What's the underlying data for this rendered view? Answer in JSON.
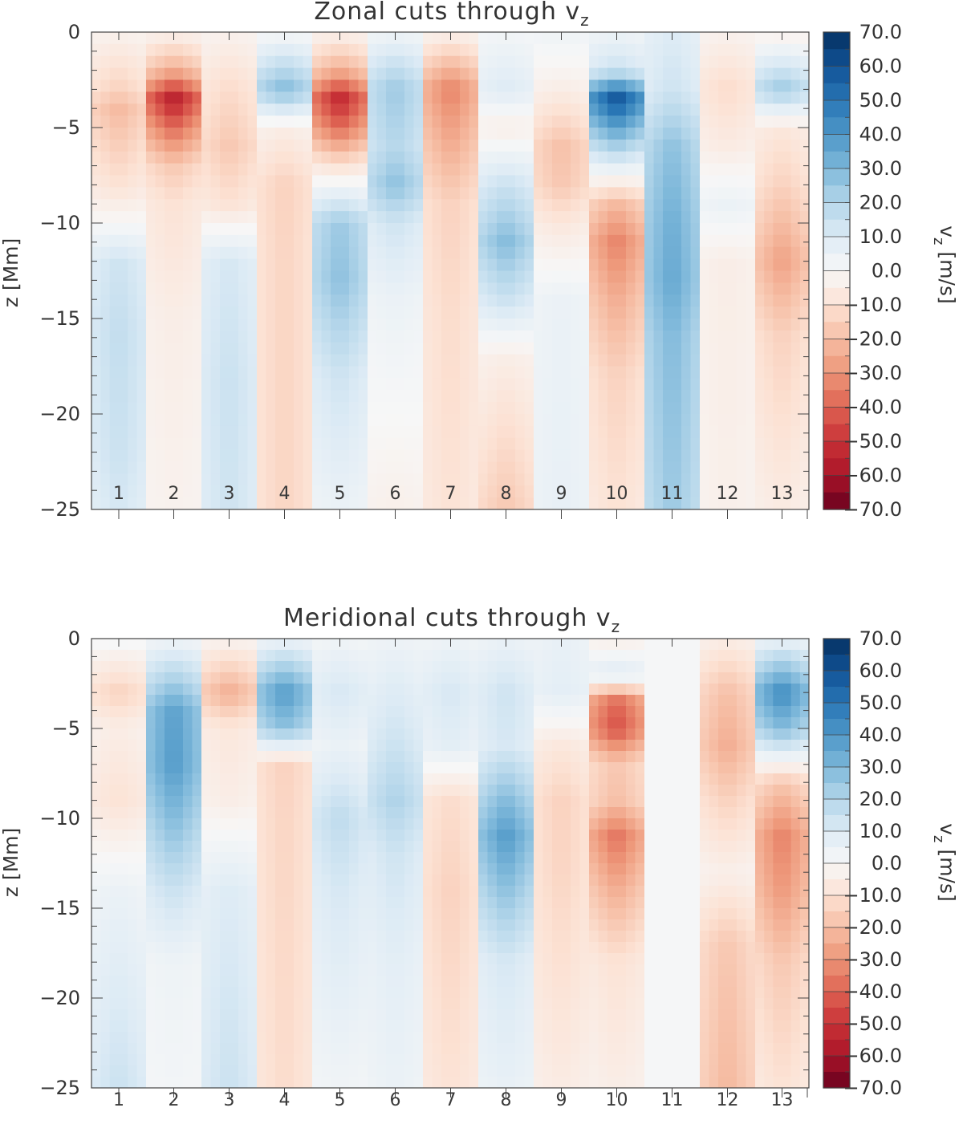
{
  "chart_data": [
    {
      "type": "heatmap",
      "title": "Zonal cuts through v",
      "title_subscript": "z",
      "ylabel": "z [Mm]",
      "ylim": [
        -25,
        0
      ],
      "yticks": [
        0,
        -5,
        -10,
        -15,
        -20,
        -25
      ],
      "ytick_labels": [
        "0",
        "−5",
        "−10",
        "−15",
        "−20",
        "−25"
      ],
      "columns": [
        "1",
        "2",
        "3",
        "4",
        "5",
        "6",
        "7",
        "8",
        "9",
        "10",
        "11",
        "12",
        "13"
      ],
      "colorbar": {
        "label_main": "v",
        "label_sub": "z",
        "label_unit": "[m/s]",
        "range": [
          -70,
          70
        ],
        "tick_labels": [
          "70.0",
          "60.0",
          "50.0",
          "40.0",
          "30.0",
          "20.0",
          "10.0",
          "0.0",
          "−10.0",
          "−20.0",
          "−30.0",
          "−40.0",
          "−50.0",
          "−60.0",
          "−70.0"
        ]
      },
      "columns_data": [
        [
          [
            0,
            -3
          ],
          [
            -3,
            -15
          ],
          [
            -4,
            -22
          ],
          [
            -8,
            -10
          ],
          [
            -10,
            0
          ],
          [
            -12,
            14
          ],
          [
            -16,
            17
          ],
          [
            -22,
            15
          ],
          [
            -25,
            12
          ]
        ],
        [
          [
            0,
            -3
          ],
          [
            -2,
            -25
          ],
          [
            -3.5,
            -58
          ],
          [
            -5,
            -40
          ],
          [
            -7,
            -18
          ],
          [
            -9,
            -10
          ],
          [
            -15,
            -5
          ],
          [
            -25,
            -3
          ]
        ],
        [
          [
            0,
            -3
          ],
          [
            -3,
            -12
          ],
          [
            -6,
            -18
          ],
          [
            -9,
            -10
          ],
          [
            -12,
            12
          ],
          [
            -18,
            15
          ],
          [
            -25,
            14
          ]
        ],
        [
          [
            0,
            0
          ],
          [
            -3,
            30
          ],
          [
            -5,
            -5
          ],
          [
            -8,
            -15
          ],
          [
            -12,
            -14
          ],
          [
            -25,
            -14
          ]
        ],
        [
          [
            0,
            -3
          ],
          [
            -2,
            -25
          ],
          [
            -3.5,
            -55
          ],
          [
            -5,
            -40
          ],
          [
            -7,
            -10
          ],
          [
            -10,
            25
          ],
          [
            -13,
            28
          ],
          [
            -18,
            14
          ],
          [
            -25,
            5
          ]
        ],
        [
          [
            0,
            3
          ],
          [
            -3,
            25
          ],
          [
            -6,
            20
          ],
          [
            -8,
            28
          ],
          [
            -10,
            14
          ],
          [
            -14,
            5
          ],
          [
            -25,
            -4
          ]
        ],
        [
          [
            0,
            -3
          ],
          [
            -3,
            -35
          ],
          [
            -6,
            -25
          ],
          [
            -9,
            -15
          ],
          [
            -15,
            -12
          ],
          [
            -25,
            -10
          ]
        ],
        [
          [
            0,
            2
          ],
          [
            -3,
            10
          ],
          [
            -5,
            -5
          ],
          [
            -8,
            15
          ],
          [
            -11,
            30
          ],
          [
            -14,
            15
          ],
          [
            -17,
            -5
          ],
          [
            -25,
            -18
          ]
        ],
        [
          [
            0,
            4
          ],
          [
            -3,
            -5
          ],
          [
            -6,
            -20
          ],
          [
            -8,
            -18
          ],
          [
            -10,
            -8
          ],
          [
            -14,
            5
          ],
          [
            -25,
            6
          ]
        ],
        [
          [
            0,
            4
          ],
          [
            -2,
            15
          ],
          [
            -3.5,
            62
          ],
          [
            -5,
            38
          ],
          [
            -7,
            8
          ],
          [
            -9,
            -22
          ],
          [
            -11,
            -35
          ],
          [
            -14,
            -25
          ],
          [
            -18,
            -15
          ],
          [
            -25,
            -10
          ]
        ],
        [
          [
            0,
            10
          ],
          [
            -3,
            14
          ],
          [
            -6,
            28
          ],
          [
            -10,
            34
          ],
          [
            -13,
            36
          ],
          [
            -16,
            30
          ],
          [
            -25,
            25
          ]
        ],
        [
          [
            0,
            -3
          ],
          [
            -3,
            -12
          ],
          [
            -6,
            -6
          ],
          [
            -9,
            5
          ],
          [
            -12,
            -5
          ],
          [
            -25,
            -4
          ]
        ],
        [
          [
            0,
            -5
          ],
          [
            -3,
            25
          ],
          [
            -5,
            -8
          ],
          [
            -8,
            -15
          ],
          [
            -12,
            -28
          ],
          [
            -16,
            -15
          ],
          [
            -25,
            -6
          ]
        ]
      ]
    },
    {
      "type": "heatmap",
      "title": "Meridional cuts through v",
      "title_subscript": "z",
      "ylabel": "z [Mm]",
      "ylim": [
        -25,
        0
      ],
      "yticks": [
        0,
        -5,
        -10,
        -15,
        -20,
        -25
      ],
      "ytick_labels": [
        "0",
        "−5",
        "−10",
        "−15",
        "−20",
        "−25"
      ],
      "columns": [
        "1",
        "2",
        "3",
        "4",
        "5",
        "6",
        "7",
        "8",
        "9",
        "10",
        "11",
        "12",
        "13"
      ],
      "colorbar": {
        "label_main": "v",
        "label_sub": "z",
        "label_unit": "[m/s]",
        "range": [
          -70,
          70
        ],
        "tick_labels": [
          "70.0",
          "60.0",
          "50.0",
          "40.0",
          "30.0",
          "20.0",
          "10.0",
          "0.0",
          "−10.0",
          "−20.0",
          "−30.0",
          "−40.0",
          "−50.0",
          "−60.0",
          "−70.0"
        ]
      },
      "columns_data": [
        [
          [
            0,
            2
          ],
          [
            -3,
            -15
          ],
          [
            -5,
            -5
          ],
          [
            -9,
            -10
          ],
          [
            -14,
            5
          ],
          [
            -25,
            15
          ]
        ],
        [
          [
            0,
            3
          ],
          [
            -2,
            20
          ],
          [
            -4,
            38
          ],
          [
            -7,
            40
          ],
          [
            -10,
            30
          ],
          [
            -14,
            15
          ],
          [
            -18,
            4
          ],
          [
            -25,
            2
          ]
        ],
        [
          [
            0,
            -2
          ],
          [
            -3,
            -25
          ],
          [
            -5,
            -8
          ],
          [
            -9,
            -5
          ],
          [
            -14,
            10
          ],
          [
            -25,
            15
          ]
        ],
        [
          [
            0,
            4
          ],
          [
            -3,
            40
          ],
          [
            -5,
            28
          ],
          [
            -7,
            -15
          ],
          [
            -10,
            -14
          ],
          [
            -25,
            -12
          ]
        ],
        [
          [
            0,
            3
          ],
          [
            -3,
            12
          ],
          [
            -6,
            5
          ],
          [
            -10,
            18
          ],
          [
            -14,
            12
          ],
          [
            -25,
            3
          ]
        ],
        [
          [
            0,
            4
          ],
          [
            -3,
            10
          ],
          [
            -6,
            15
          ],
          [
            -9,
            22
          ],
          [
            -12,
            14
          ],
          [
            -18,
            8
          ],
          [
            -25,
            5
          ]
        ],
        [
          [
            0,
            4
          ],
          [
            -3,
            12
          ],
          [
            -6,
            8
          ],
          [
            -9,
            -12
          ],
          [
            -14,
            -15
          ],
          [
            -25,
            -10
          ]
        ],
        [
          [
            0,
            5
          ],
          [
            -3,
            14
          ],
          [
            -6,
            12
          ],
          [
            -9,
            30
          ],
          [
            -11,
            40
          ],
          [
            -14,
            28
          ],
          [
            -18,
            12
          ],
          [
            -25,
            6
          ]
        ],
        [
          [
            0,
            6
          ],
          [
            -3,
            8
          ],
          [
            -6,
            -8
          ],
          [
            -9,
            -15
          ],
          [
            -13,
            -14
          ],
          [
            -25,
            -6
          ]
        ],
        [
          [
            0,
            -5
          ],
          [
            -2,
            10
          ],
          [
            -3.5,
            -40
          ],
          [
            -5,
            -45
          ],
          [
            -7,
            -18
          ],
          [
            -9,
            -20
          ],
          [
            -11,
            -38
          ],
          [
            -14,
            -25
          ],
          [
            -18,
            -10
          ],
          [
            -25,
            -5
          ]
        ],
        [
          [
            0,
            1
          ],
          [
            -25,
            1
          ]
        ],
        [
          [
            0,
            -5
          ],
          [
            -3,
            -20
          ],
          [
            -6,
            -25
          ],
          [
            -9,
            -15
          ],
          [
            -13,
            -4
          ],
          [
            -17,
            -18
          ],
          [
            -25,
            -22
          ]
        ],
        [
          [
            0,
            5
          ],
          [
            -3,
            45
          ],
          [
            -5,
            30
          ],
          [
            -8,
            -18
          ],
          [
            -11,
            -35
          ],
          [
            -14,
            -30
          ],
          [
            -18,
            -18
          ],
          [
            -25,
            -10
          ]
        ]
      ]
    }
  ]
}
